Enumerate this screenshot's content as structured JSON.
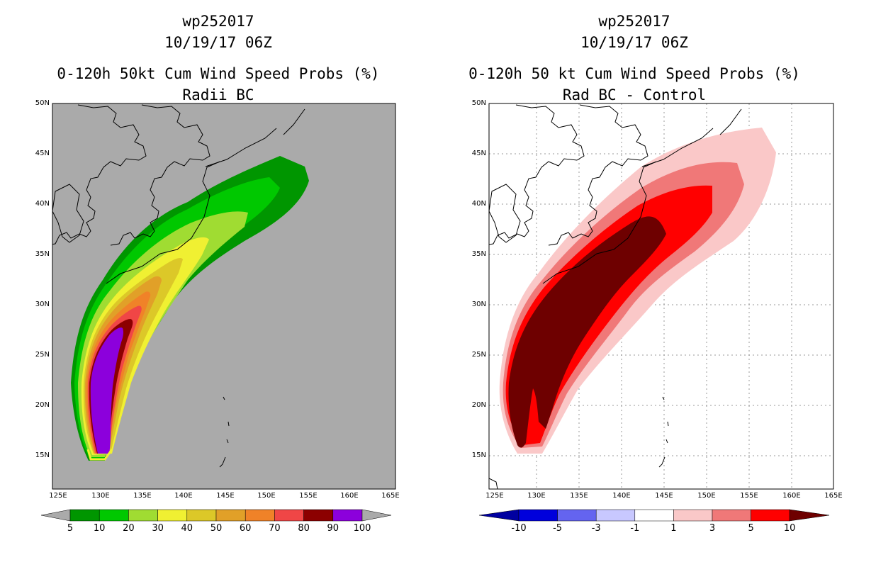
{
  "panels": [
    {
      "line1": "wp252017",
      "line2": "10/19/17 06Z",
      "line3": "0-120h 50kt Cum Wind Speed Probs (%)",
      "line4": "Radii BC",
      "background_color": "#aaaaaa",
      "legend": {
        "labels": [
          "5",
          "10",
          "20",
          "30",
          "40",
          "50",
          "60",
          "70",
          "80",
          "90",
          "100"
        ],
        "colors": [
          "#009600",
          "#00c800",
          "#a0dc32",
          "#f0f032",
          "#dcc828",
          "#e1a028",
          "#f08228",
          "#f04646",
          "#8c0000",
          "#8c00dc"
        ],
        "end_colors": [
          "#aaaaaa",
          "#aaaaaa"
        ]
      }
    },
    {
      "line1": "wp252017",
      "line2": "10/19/17 06Z",
      "line3": "0-120h 50 kt Cum Wind Speed Probs (%)",
      "line4": "Rad BC - Control",
      "background_color": "#ffffff",
      "legend": {
        "labels": [
          "-10",
          "-5",
          "-3",
          "-1",
          "1",
          "3",
          "5",
          "10"
        ],
        "colors": [
          "#0000dc",
          "#6464f0",
          "#c8c8ff",
          "#ffffff",
          "#fac8c8",
          "#f07878",
          "#ff0000"
        ],
        "end_colors": [
          "#0000a0",
          "#6e0000"
        ]
      }
    }
  ],
  "axes": {
    "lat_labels": [
      "50N",
      "45N",
      "40N",
      "35N",
      "30N",
      "25N",
      "20N",
      "15N"
    ],
    "lon_labels": [
      "125E",
      "130E",
      "135E",
      "140E",
      "145E",
      "150E",
      "155E",
      "160E",
      "165E"
    ]
  }
}
